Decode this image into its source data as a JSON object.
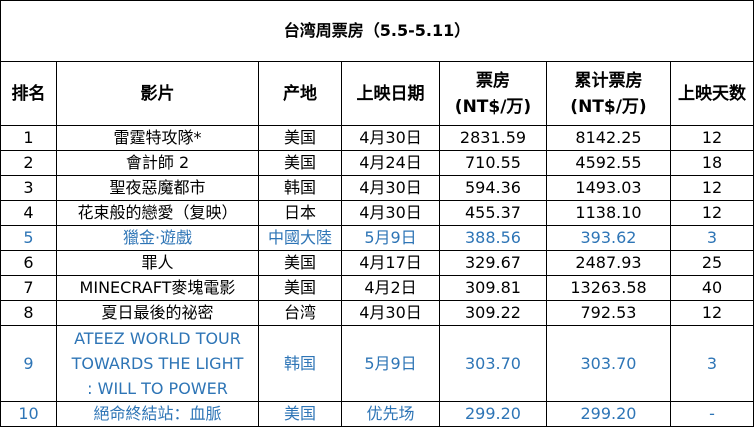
{
  "title": "台湾周票房（5.5-5.11）",
  "columns": [
    "排名",
    "影片",
    "产地",
    "上映日期",
    "票房\n(NT$/万)",
    "累计票房\n(NT$/万)",
    "上映天数"
  ],
  "column_lines": {
    "gross": [
      "票房",
      "(NT$/万)"
    ],
    "total": [
      "累计票房",
      "(NT$/万)"
    ]
  },
  "rows": [
    {
      "rank": "1",
      "film": "雷霆特攻隊*",
      "origin": "美国",
      "release": "4月30日",
      "gross": "2831.59",
      "total": "8142.25",
      "days": "12"
    },
    {
      "rank": "2",
      "film": "會計師 2",
      "origin": "美国",
      "release": "4月24日",
      "gross": "710.55",
      "total": "4592.55",
      "days": "18"
    },
    {
      "rank": "3",
      "film": "聖夜惡魔都市",
      "origin": "韩国",
      "release": "4月30日",
      "gross": "594.36",
      "total": "1493.03",
      "days": "12"
    },
    {
      "rank": "4",
      "film": "花束般的戀愛（复映）",
      "origin": "日本",
      "release": "4月30日",
      "gross": "455.37",
      "total": "1138.10",
      "days": "12"
    },
    {
      "rank": "5",
      "film": "獵金·遊戲",
      "origin": "中國大陸",
      "release": "5月9日",
      "gross": "388.56",
      "total": "393.62",
      "days": "3"
    },
    {
      "rank": "6",
      "film": "罪人",
      "origin": "美国",
      "release": "4月17日",
      "gross": "329.67",
      "total": "2487.93",
      "days": "25"
    },
    {
      "rank": "7",
      "film": "MINECRAFT麥塊電影",
      "origin": "美国",
      "release": "4月2日",
      "gross": "309.81",
      "total": "13263.58",
      "days": "40"
    },
    {
      "rank": "8",
      "film": "夏日最後的祕密",
      "origin": "台湾",
      "release": "4月30日",
      "gross": "309.22",
      "total": "792.53",
      "days": "12"
    },
    {
      "rank": "9",
      "film": "ATEEZ WORLD TOUR TOWARDS THE LIGHT : WILL TO POWER",
      "film_lines": [
        "ATEEZ WORLD TOUR",
        "TOWARDS THE LIGHT",
        ": WILL TO POWER"
      ],
      "origin": "韩国",
      "release": "5月9日",
      "gross": "303.70",
      "total": "303.70",
      "days": "3"
    },
    {
      "rank": "10",
      "film": "絕命終結站：血脈",
      "origin": "美国",
      "release": "优先场",
      "gross": "299.20",
      "total": "299.20",
      "days": "-"
    }
  ],
  "highlight_color": "#2e75b6"
}
